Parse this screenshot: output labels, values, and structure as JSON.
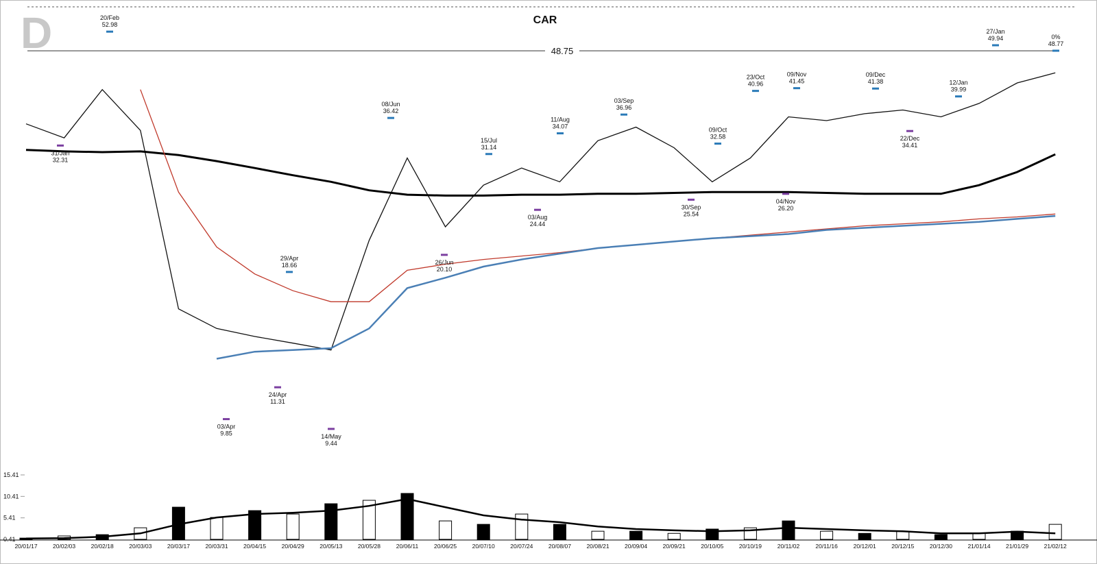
{
  "chart_data": {
    "type": "line",
    "title": "CAR",
    "badge": "D",
    "log_scale": true,
    "ylim": [
      7.8,
      59
    ],
    "categories": [
      "20/01/17",
      "20/02/03",
      "20/02/18",
      "20/03/03",
      "20/03/17",
      "20/03/31",
      "20/04/15",
      "20/04/29",
      "20/05/13",
      "20/05/28",
      "20/06/11",
      "20/06/25",
      "20/07/10",
      "20/07/24",
      "20/08/07",
      "20/08/21",
      "20/09/04",
      "20/09/21",
      "20/10/05",
      "20/10/19",
      "20/11/02",
      "20/11/16",
      "20/12/01",
      "20/12/15",
      "20/12/30",
      "21/01/14",
      "21/01/29",
      "21/02/12"
    ],
    "series": [
      {
        "color": "#111111",
        "values": [
          35.5,
          33.4,
          41.2,
          34.5,
          15.9,
          14.6,
          14.1,
          13.7,
          13.3,
          21.4,
          30.6,
          22.7,
          27.2,
          29.3,
          27.6,
          33.0,
          35.0,
          32.0,
          27.6,
          30.6,
          36.6,
          36.0,
          37.1,
          37.7,
          36.6,
          38.8,
          42.4,
          44.3
        ]
      },
      {
        "color": "#000000",
        "values": [
          31.7,
          31.5,
          31.4,
          31.5,
          31.0,
          30.2,
          29.3,
          28.4,
          27.6,
          26.6,
          26.1,
          26.0,
          26.0,
          26.1,
          26.1,
          26.2,
          26.2,
          26.3,
          26.4,
          26.4,
          26.4,
          26.3,
          26.2,
          26.2,
          26.2,
          27.2,
          28.8,
          31.1
        ]
      },
      {
        "color": "#c0392b",
        "values": [
          null,
          null,
          null,
          41.2,
          26.4,
          20.8,
          18.5,
          17.2,
          16.4,
          16.4,
          18.8,
          19.3,
          19.7,
          20.0,
          20.3,
          20.7,
          21.0,
          21.3,
          21.6,
          21.9,
          22.2,
          22.5,
          22.8,
          23.0,
          23.2,
          23.5,
          23.7,
          24.0
        ]
      },
      {
        "color": "#4a7fb5",
        "values": [
          null,
          null,
          null,
          null,
          null,
          12.8,
          13.2,
          13.3,
          13.4,
          14.6,
          17.4,
          18.2,
          19.1,
          19.7,
          20.2,
          20.7,
          21.0,
          21.3,
          21.6,
          21.8,
          22.0,
          22.4,
          22.6,
          22.8,
          23.0,
          23.2,
          23.5,
          23.8
        ]
      }
    ],
    "reference_line": 48.75,
    "annotations": [
      {
        "date": "31/Jan",
        "value": 32.31,
        "kind": "low"
      },
      {
        "date": "20/Feb",
        "value": 52.98,
        "kind": "high"
      },
      {
        "date": "03/Apr",
        "value": 9.85,
        "kind": "low"
      },
      {
        "date": "24/Apr",
        "value": 11.31,
        "kind": "low"
      },
      {
        "date": "29/Apr",
        "value": 18.66,
        "kind": "high"
      },
      {
        "date": "14/May",
        "value": 9.44,
        "kind": "low"
      },
      {
        "date": "08/Jun",
        "value": 36.42,
        "kind": "high"
      },
      {
        "date": "26/Jun",
        "value": 20.1,
        "value_label": "20.10",
        "kind": "low"
      },
      {
        "date": "15/Jul",
        "value": 31.14,
        "kind": "high"
      },
      {
        "date": "03/Aug",
        "value": 24.44,
        "kind": "low"
      },
      {
        "date": "11/Aug",
        "value": 34.07,
        "kind": "high"
      },
      {
        "date": "03/Sep",
        "value": 36.96,
        "kind": "high"
      },
      {
        "date": "30/Sep",
        "value": 25.54,
        "kind": "low"
      },
      {
        "date": "09/Oct",
        "value": 32.58,
        "kind": "high"
      },
      {
        "date": "23/Oct",
        "value": 40.96,
        "kind": "high"
      },
      {
        "date": "04/Nov",
        "value": 26.2,
        "value_label": "26.20",
        "kind": "low"
      },
      {
        "date": "09/Nov",
        "value": 41.45,
        "kind": "high"
      },
      {
        "date": "09/Dec",
        "value": 41.38,
        "kind": "high"
      },
      {
        "date": "22/Dec",
        "value": 34.41,
        "kind": "low"
      },
      {
        "date": "12/Jan",
        "value": 39.99,
        "kind": "high"
      },
      {
        "date": "27/Jan",
        "value": 49.94,
        "kind": "high"
      },
      {
        "date": "0%",
        "value": 48.77,
        "kind": "high"
      }
    ],
    "volume": {
      "type": "bar",
      "ylim": [
        0.41,
        15.41
      ],
      "yticks": [
        0.41,
        5.41,
        10.41,
        15.41
      ],
      "color": "#000000",
      "values": [
        0.7,
        1.2,
        1.5,
        3.1,
        7.9,
        5.5,
        7.1,
        6.3,
        8.7,
        9.5,
        11.1,
        4.7,
        3.9,
        6.3,
        3.9,
        2.3,
        2.3,
        1.8,
        2.8,
        3.1,
        4.7,
        2.3,
        1.8,
        2.3,
        1.5,
        1.8,
        2.3,
        3.9
      ],
      "average": [
        0.6,
        0.7,
        1.0,
        1.8,
        3.9,
        5.5,
        6.3,
        6.6,
        7.1,
        8.2,
        9.8,
        7.9,
        6.0,
        5.0,
        4.4,
        3.4,
        2.8,
        2.5,
        2.3,
        2.5,
        3.1,
        2.8,
        2.5,
        2.3,
        1.8,
        1.8,
        2.2,
        1.8
      ]
    }
  }
}
